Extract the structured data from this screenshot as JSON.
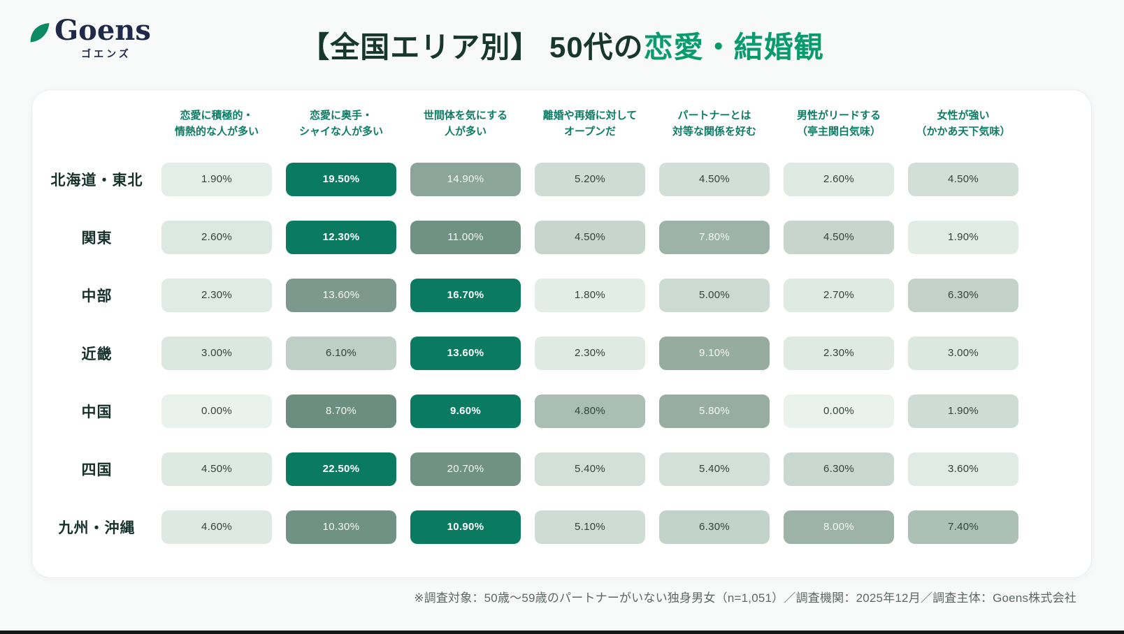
{
  "logo": {
    "name": "Goens",
    "kana": "ゴエンズ"
  },
  "title": {
    "prefix": "【全国エリア別】 50代の",
    "highlight": "恋愛・結婚観"
  },
  "theme": {
    "accent_teal": "#0a7b61",
    "title_green": "#0a9b6c",
    "column_header_text": "#0e7c65",
    "row_label_text": "#16302a",
    "logo_navy": "#1e2a47",
    "leaf_green": "#0c8a62",
    "card_bg": "#ffffff",
    "page_bg": "#f8fafa"
  },
  "table": {
    "columns": [
      [
        "恋愛に積極的・",
        "情熱的な人が多い"
      ],
      [
        "恋愛に奥手・",
        "シャイな人が多い"
      ],
      [
        "世間体を気にする",
        "人が多い"
      ],
      [
        "離婚や再婚に対して",
        "オープンだ"
      ],
      [
        "パートナーとは",
        "対等な関係を好む"
      ],
      [
        "男性がリードする",
        "（亭主関白気味）"
      ],
      [
        "女性が強い",
        "（かかあ天下気味）"
      ]
    ],
    "rows": [
      {
        "label": "北海道・東北",
        "cells": [
          {
            "value": "1.90%",
            "bg": "#e4eee9",
            "text": "#32423c",
            "bold": false
          },
          {
            "value": "19.50%",
            "bg": "#0a7b61",
            "text": "#ffffff",
            "bold": true
          },
          {
            "value": "14.90%",
            "bg": "#8ba59a",
            "text": "#f6faf8",
            "bold": false
          },
          {
            "value": "5.20%",
            "bg": "#cddcd5",
            "text": "#32423c",
            "bold": false
          },
          {
            "value": "4.50%",
            "bg": "#d2dfd8",
            "text": "#32423c",
            "bold": false
          },
          {
            "value": "2.60%",
            "bg": "#dfeae4",
            "text": "#32423c",
            "bold": false
          },
          {
            "value": "4.50%",
            "bg": "#d2dfd8",
            "text": "#32423c",
            "bold": false
          }
        ]
      },
      {
        "label": "関東",
        "cells": [
          {
            "value": "2.60%",
            "bg": "#dce8e2",
            "text": "#32423c",
            "bold": false
          },
          {
            "value": "12.30%",
            "bg": "#0a7b61",
            "text": "#ffffff",
            "bold": true
          },
          {
            "value": "11.00%",
            "bg": "#6f9285",
            "text": "#f6faf8",
            "bold": false
          },
          {
            "value": "4.50%",
            "bg": "#c6d6ce",
            "text": "#32423c",
            "bold": false
          },
          {
            "value": "7.80%",
            "bg": "#9db2a8",
            "text": "#f6faf8",
            "bold": false
          },
          {
            "value": "4.50%",
            "bg": "#c6d6ce",
            "text": "#32423c",
            "bold": false
          },
          {
            "value": "1.90%",
            "bg": "#e2ece7",
            "text": "#32423c",
            "bold": false
          }
        ]
      },
      {
        "label": "中部",
        "cells": [
          {
            "value": "2.30%",
            "bg": "#e0ebe5",
            "text": "#32423c",
            "bold": false
          },
          {
            "value": "13.60%",
            "bg": "#7d998d",
            "text": "#f6faf8",
            "bold": false
          },
          {
            "value": "16.70%",
            "bg": "#0a7b61",
            "text": "#ffffff",
            "bold": true
          },
          {
            "value": "1.80%",
            "bg": "#e3ede8",
            "text": "#32423c",
            "bold": false
          },
          {
            "value": "5.00%",
            "bg": "#cbdad3",
            "text": "#32423c",
            "bold": false
          },
          {
            "value": "2.70%",
            "bg": "#dfeae4",
            "text": "#32423c",
            "bold": false
          },
          {
            "value": "6.30%",
            "bg": "#c2d2cb",
            "text": "#32423c",
            "bold": false
          }
        ]
      },
      {
        "label": "近畿",
        "cells": [
          {
            "value": "3.00%",
            "bg": "#dbe7e1",
            "text": "#32423c",
            "bold": false
          },
          {
            "value": "6.10%",
            "bg": "#bdcfc7",
            "text": "#32423c",
            "bold": false
          },
          {
            "value": "13.60%",
            "bg": "#0a7b61",
            "text": "#ffffff",
            "bold": true
          },
          {
            "value": "2.30%",
            "bg": "#dfeae4",
            "text": "#32423c",
            "bold": false
          },
          {
            "value": "9.10%",
            "bg": "#96ac9f",
            "text": "#f6faf8",
            "bold": false
          },
          {
            "value": "2.30%",
            "bg": "#dfeae4",
            "text": "#32423c",
            "bold": false
          },
          {
            "value": "3.00%",
            "bg": "#dbe7e1",
            "text": "#32423c",
            "bold": false
          }
        ]
      },
      {
        "label": "中国",
        "cells": [
          {
            "value": "0.00%",
            "bg": "#eaf2ed",
            "text": "#32423c",
            "bold": false
          },
          {
            "value": "8.70%",
            "bg": "#6b8e80",
            "text": "#f6faf8",
            "bold": false
          },
          {
            "value": "9.60%",
            "bg": "#0a7b61",
            "text": "#ffffff",
            "bold": true
          },
          {
            "value": "4.80%",
            "bg": "#aabeb4",
            "text": "#32423c",
            "bold": false
          },
          {
            "value": "5.80%",
            "bg": "#97ada1",
            "text": "#f6faf8",
            "bold": false
          },
          {
            "value": "0.00%",
            "bg": "#eaf2ed",
            "text": "#32423c",
            "bold": false
          },
          {
            "value": "1.90%",
            "bg": "#cddcd5",
            "text": "#32423c",
            "bold": false
          }
        ]
      },
      {
        "label": "四国",
        "cells": [
          {
            "value": "4.50%",
            "bg": "#dde9e3",
            "text": "#32423c",
            "bold": false
          },
          {
            "value": "22.50%",
            "bg": "#0a7b61",
            "text": "#ffffff",
            "bold": true
          },
          {
            "value": "20.70%",
            "bg": "#6f9285",
            "text": "#f6faf8",
            "bold": false
          },
          {
            "value": "5.40%",
            "bg": "#d2e0d9",
            "text": "#32423c",
            "bold": false
          },
          {
            "value": "5.40%",
            "bg": "#d2e0d9",
            "text": "#32423c",
            "bold": false
          },
          {
            "value": "6.30%",
            "bg": "#c9d8d1",
            "text": "#32423c",
            "bold": false
          },
          {
            "value": "3.60%",
            "bg": "#e0ebe6",
            "text": "#32423c",
            "bold": false
          }
        ]
      },
      {
        "label": "九州・沖縄",
        "cells": [
          {
            "value": "4.60%",
            "bg": "#dee9e3",
            "text": "#32423c",
            "bold": false
          },
          {
            "value": "10.30%",
            "bg": "#6f9285",
            "text": "#f6faf8",
            "bold": false
          },
          {
            "value": "10.90%",
            "bg": "#0a7b61",
            "text": "#ffffff",
            "bold": true
          },
          {
            "value": "5.10%",
            "bg": "#cddcd5",
            "text": "#32423c",
            "bold": false
          },
          {
            "value": "6.30%",
            "bg": "#c2d3cb",
            "text": "#32423c",
            "bold": false
          },
          {
            "value": "8.00%",
            "bg": "#9db2a8",
            "text": "#f6faf8",
            "bold": false
          },
          {
            "value": "7.40%",
            "bg": "#adc0b6",
            "text": "#32423c",
            "bold": false
          }
        ]
      }
    ]
  },
  "chart_data": {
    "type": "heatmap",
    "title": "【全国エリア別】50代の恋愛・結婚観",
    "columns": [
      "恋愛に積極的・情熱的な人が多い",
      "恋愛に奥手・シャイな人が多い",
      "世間体を気にする人が多い",
      "離婚や再婚に対してオープンだ",
      "パートナーとは対等な関係を好む",
      "男性がリードする（亭主関白気味）",
      "女性が強い（かかあ天下気味）"
    ],
    "rows": [
      "北海道・東北",
      "関東",
      "中部",
      "近畿",
      "中国",
      "四国",
      "九州・沖縄"
    ],
    "values_percent": [
      [
        1.9,
        19.5,
        14.9,
        5.2,
        4.5,
        2.6,
        4.5
      ],
      [
        2.6,
        12.3,
        11.0,
        4.5,
        7.8,
        4.5,
        1.9
      ],
      [
        2.3,
        13.6,
        16.7,
        1.8,
        5.0,
        2.7,
        6.3
      ],
      [
        3.0,
        6.1,
        13.6,
        2.3,
        9.1,
        2.3,
        3.0
      ],
      [
        0.0,
        8.7,
        9.6,
        4.8,
        5.8,
        0.0,
        1.9
      ],
      [
        4.5,
        22.5,
        20.7,
        5.4,
        5.4,
        6.3,
        3.6
      ],
      [
        4.6,
        10.3,
        10.9,
        5.1,
        6.3,
        8.0,
        7.4
      ]
    ],
    "legend_position": "none",
    "note": "row maximum highlighted in dark teal"
  },
  "footnote": "※調査対象：50歳〜59歳のパートナーがいない独身男女（n=1,051）／調査機関：2025年12月／調査主体：Goens株式会社"
}
